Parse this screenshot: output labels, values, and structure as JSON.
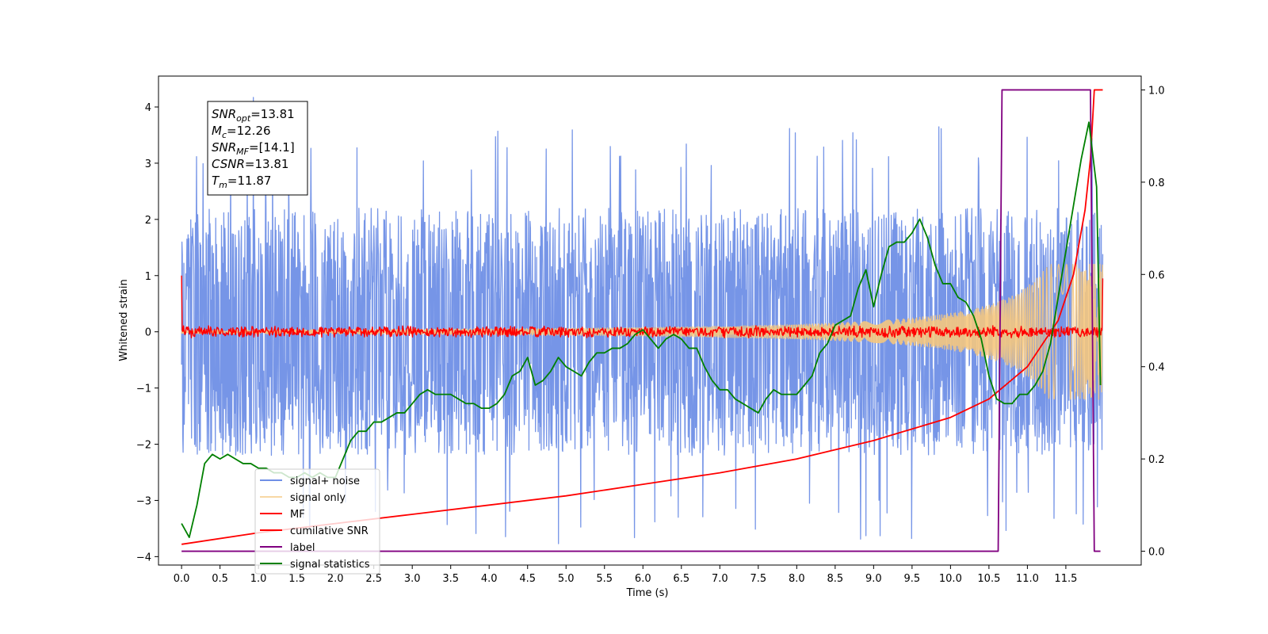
{
  "chart_data": {
    "type": "line",
    "xlabel": "Time (s)",
    "ylabel": "Whitened strain",
    "xlim": [
      -0.3,
      12.48
    ],
    "ylim": [
      -4.15,
      4.55
    ],
    "y2lim": [
      -0.03,
      1.03
    ],
    "x_ticks": [
      "0.0",
      "0.5",
      "1.0",
      "1.5",
      "2.0",
      "2.5",
      "3.0",
      "3.5",
      "4.0",
      "4.5",
      "5.0",
      "5.5",
      "6.0",
      "6.5",
      "7.0",
      "7.5",
      "8.0",
      "8.5",
      "9.0",
      "9.5",
      "10.0",
      "10.5",
      "11.0",
      "11.5"
    ],
    "y_ticks": [
      "4",
      "3",
      "2",
      "1",
      "0",
      "−1",
      "−2",
      "−3",
      "−4"
    ],
    "y2_ticks": [
      "1.0",
      "0.8",
      "0.6",
      "0.4",
      "0.2",
      "0.0"
    ],
    "annotation": [
      {
        "sym": "SNR",
        "sub": "opt",
        "rest": "=13.81"
      },
      {
        "sym": "M",
        "sub": "c",
        "rest": "=12.26"
      },
      {
        "sym": "SNR",
        "sub": "MF",
        "rest": "=[14.1]"
      },
      {
        "sym": "CSNR",
        "sub": "",
        "rest": "=13.81"
      },
      {
        "sym": "T",
        "sub": "m",
        "rest": "=11.87"
      }
    ],
    "legend_position": "lower-left",
    "series": [
      {
        "name": "signal+ noise",
        "color": "#6f8fe6",
        "axis": "left",
        "kind": "noise",
        "x_range": [
          0,
          11.98
        ],
        "typical_amplitude": 2.2,
        "peak_max": 4.17,
        "peak_min": -3.77
      },
      {
        "name": "signal only",
        "color": "#f5c77e",
        "axis": "left",
        "kind": "chirp",
        "x_range": [
          0,
          11.98
        ],
        "amplitude_start": 0.03,
        "amplitude_end": 1.2
      },
      {
        "name": "MF",
        "color": "#ff0000",
        "axis": "left",
        "kind": "noise",
        "x_range": [
          0,
          11.98
        ],
        "typical_amplitude": 0.1,
        "start_value": 1.0,
        "end_value": 0.95
      },
      {
        "name": "cumilative SNR",
        "color": "#ff0000",
        "axis": "right",
        "x": [
          0,
          1,
          2,
          3,
          4,
          5,
          6,
          7,
          8,
          9,
          10,
          10.5,
          11,
          11.4,
          11.6,
          11.75,
          11.82,
          11.87,
          11.98
        ],
        "y": [
          0.015,
          0.04,
          0.06,
          0.08,
          0.1,
          0.12,
          0.145,
          0.17,
          0.2,
          0.24,
          0.29,
          0.33,
          0.4,
          0.5,
          0.6,
          0.74,
          0.85,
          1.0,
          1.0
        ]
      },
      {
        "name": "label",
        "color": "#800080",
        "axis": "right",
        "x": [
          0,
          10.62,
          10.67,
          11.82,
          11.87,
          11.95
        ],
        "y": [
          0,
          0,
          1,
          1,
          0,
          0
        ]
      },
      {
        "name": "signal statistics",
        "color": "#008000",
        "axis": "right",
        "x": [
          0,
          0.1,
          0.2,
          0.3,
          0.4,
          0.5,
          0.6,
          0.7,
          0.8,
          0.9,
          1.0,
          1.1,
          1.2,
          1.3,
          1.4,
          1.5,
          1.6,
          1.7,
          1.8,
          1.9,
          2.0,
          2.1,
          2.2,
          2.3,
          2.4,
          2.5,
          2.6,
          2.7,
          2.8,
          2.9,
          3.0,
          3.1,
          3.2,
          3.3,
          3.4,
          3.5,
          3.6,
          3.7,
          3.8,
          3.9,
          4.0,
          4.1,
          4.2,
          4.3,
          4.4,
          4.5,
          4.6,
          4.7,
          4.8,
          4.9,
          5.0,
          5.1,
          5.2,
          5.3,
          5.4,
          5.5,
          5.6,
          5.7,
          5.8,
          5.9,
          6.0,
          6.1,
          6.2,
          6.3,
          6.4,
          6.5,
          6.6,
          6.7,
          6.8,
          6.9,
          7.0,
          7.1,
          7.2,
          7.3,
          7.4,
          7.5,
          7.6,
          7.7,
          7.8,
          7.9,
          8.0,
          8.1,
          8.2,
          8.3,
          8.4,
          8.5,
          8.6,
          8.7,
          8.8,
          8.9,
          9.0,
          9.1,
          9.2,
          9.3,
          9.4,
          9.5,
          9.6,
          9.7,
          9.8,
          9.9,
          10.0,
          10.1,
          10.2,
          10.3,
          10.4,
          10.5,
          10.6,
          10.7,
          10.8,
          10.9,
          11.0,
          11.1,
          11.2,
          11.3,
          11.4,
          11.5,
          11.6,
          11.7,
          11.8,
          11.9,
          11.95
        ],
        "y": [
          0.06,
          0.03,
          0.1,
          0.19,
          0.21,
          0.2,
          0.21,
          0.2,
          0.19,
          0.19,
          0.18,
          0.18,
          0.17,
          0.17,
          0.16,
          0.16,
          0.17,
          0.16,
          0.17,
          0.16,
          0.16,
          0.2,
          0.24,
          0.26,
          0.26,
          0.28,
          0.28,
          0.29,
          0.3,
          0.3,
          0.32,
          0.34,
          0.35,
          0.34,
          0.34,
          0.34,
          0.33,
          0.32,
          0.32,
          0.31,
          0.31,
          0.32,
          0.34,
          0.38,
          0.39,
          0.42,
          0.36,
          0.37,
          0.39,
          0.42,
          0.4,
          0.39,
          0.38,
          0.41,
          0.43,
          0.43,
          0.44,
          0.44,
          0.45,
          0.47,
          0.48,
          0.46,
          0.44,
          0.46,
          0.47,
          0.46,
          0.44,
          0.44,
          0.4,
          0.37,
          0.35,
          0.35,
          0.33,
          0.32,
          0.31,
          0.3,
          0.33,
          0.35,
          0.34,
          0.34,
          0.34,
          0.36,
          0.38,
          0.43,
          0.45,
          0.49,
          0.5,
          0.51,
          0.57,
          0.61,
          0.53,
          0.6,
          0.66,
          0.67,
          0.67,
          0.69,
          0.72,
          0.68,
          0.62,
          0.58,
          0.58,
          0.55,
          0.54,
          0.51,
          0.46,
          0.38,
          0.33,
          0.32,
          0.32,
          0.34,
          0.34,
          0.36,
          0.39,
          0.45,
          0.55,
          0.65,
          0.75,
          0.85,
          0.93,
          0.79,
          0.36
        ]
      }
    ]
  }
}
